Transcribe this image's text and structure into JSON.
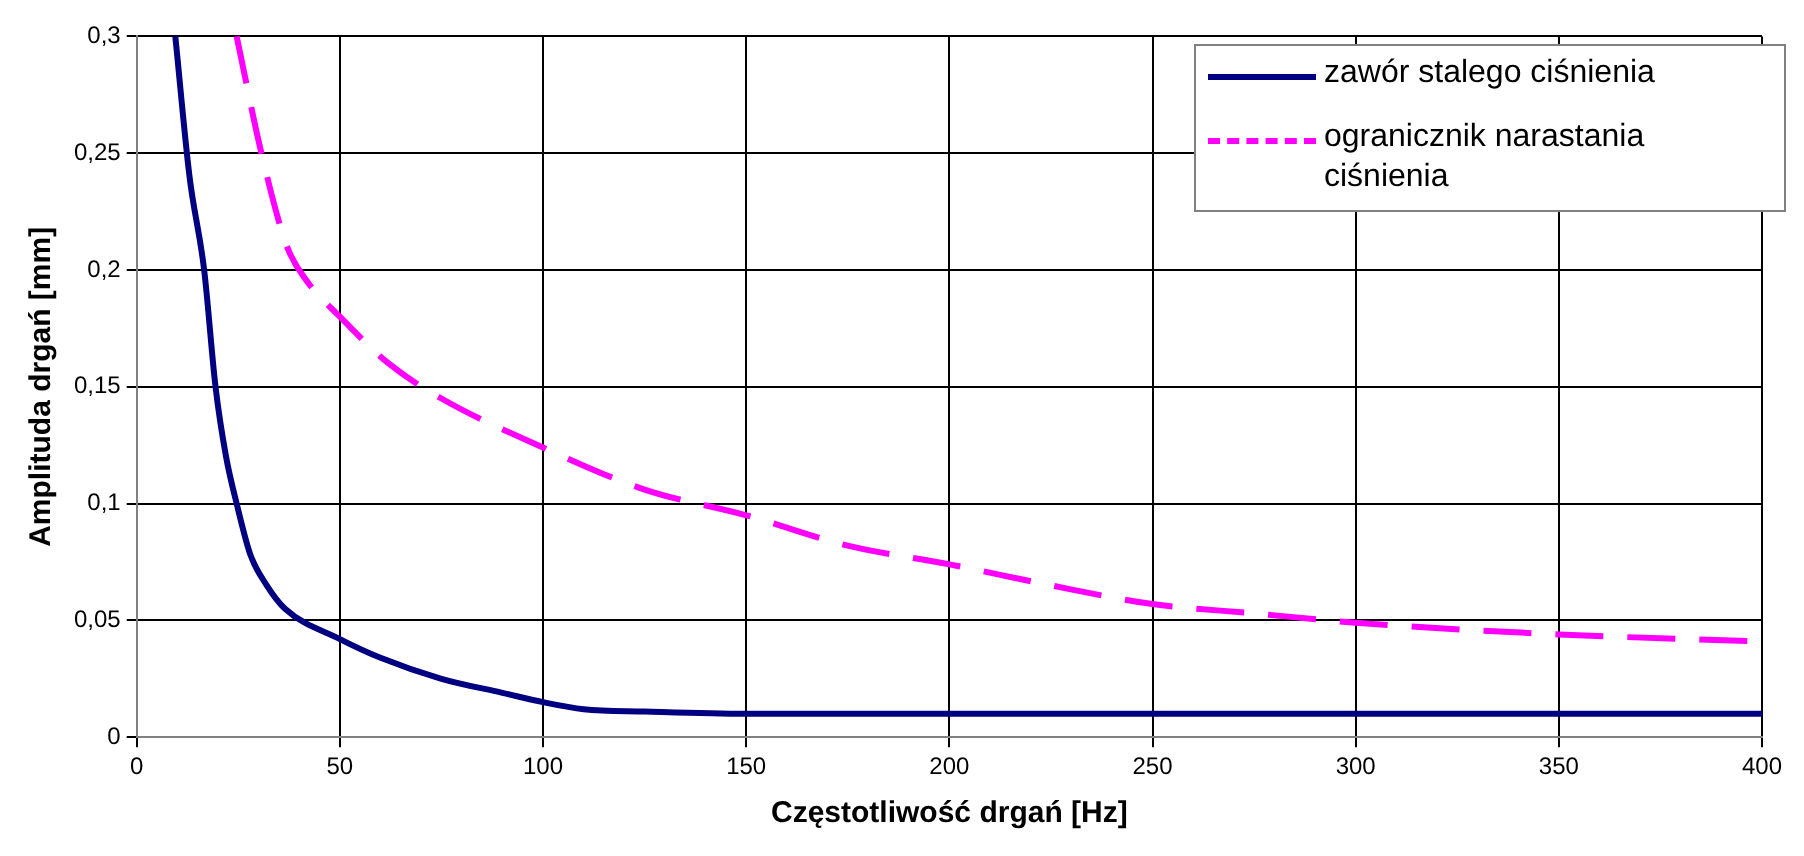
{
  "chart_data": {
    "type": "line",
    "xlabel": "Częstotliwość drgań [Hz]",
    "ylabel": "Amplituda drgań [mm]",
    "xlim": [
      0,
      400
    ],
    "xticks": [
      0,
      50,
      100,
      150,
      200,
      250,
      300,
      350,
      400
    ],
    "ylim": [
      0,
      0.3
    ],
    "yticks": [
      {
        "value": 0,
        "label": "0"
      },
      {
        "value": 0.05,
        "label": "0,05"
      },
      {
        "value": 0.1,
        "label": "0,1"
      },
      {
        "value": 0.15,
        "label": "0,15"
      },
      {
        "value": 0.2,
        "label": "0,2"
      },
      {
        "value": 0.25,
        "label": "0,25"
      },
      {
        "value": 0.3,
        "label": "0,3"
      }
    ],
    "grid": true,
    "legend": "top right",
    "marker": "none",
    "series": [
      {
        "name": "zawór stalego ciśnienia",
        "color": "#000080",
        "line_style": "solid",
        "x": [
          9.5,
          13,
          16.6,
          19.4,
          22,
          24.6,
          28,
          32,
          36.5,
          50,
          60,
          75,
          90,
          100,
          110,
          125,
          150,
          200,
          250,
          300,
          350,
          400
        ],
        "values": [
          0.3,
          0.24,
          0.2,
          0.15,
          0.12,
          0.1,
          0.078,
          0.065,
          0.055,
          0.042,
          0.034,
          0.025,
          0.019,
          0.015,
          0.012,
          0.011,
          0.01,
          0.01,
          0.01,
          0.01,
          0.01,
          0.01
        ]
      },
      {
        "name": "ogranicznik narastania ciśnienia",
        "color": "#ff00ff",
        "line_style": "dashed",
        "x": [
          24.6,
          30.7,
          37,
          42,
          50,
          62,
          75,
          100,
          125,
          150,
          175,
          200,
          225,
          250,
          275,
          300,
          350,
          400
        ],
        "values": [
          0.3,
          0.25,
          0.21,
          0.195,
          0.18,
          0.16,
          0.145,
          0.124,
          0.106,
          0.095,
          0.082,
          0.074,
          0.065,
          0.057,
          0.053,
          0.049,
          0.044,
          0.041
        ]
      }
    ]
  }
}
